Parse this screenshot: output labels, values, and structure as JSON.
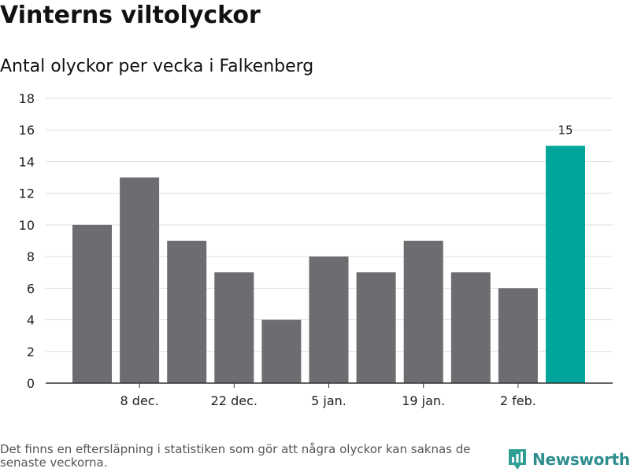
{
  "title": "Vinterns viltolyckor",
  "subtitle": "Antal olyckor per vecka i Falkenberg",
  "footnote": "Det finns en eftersläpning i statistiken som gör att några olyckor kan saknas de senaste veckorna.",
  "brand": {
    "name": "Newsworthy",
    "icon": "newsworthy-logo-icon",
    "color": "#2f9f96"
  },
  "colors": {
    "bar": "#6d6c71",
    "highlight": "#00a69b",
    "grid": "#dddddd",
    "axis": "#333333"
  },
  "chart_data": {
    "type": "bar",
    "title": "Vinterns viltolyckor",
    "subtitle": "Antal olyckor per vecka i Falkenberg",
    "values": [
      10,
      13,
      9,
      7,
      4,
      8,
      7,
      9,
      7,
      6,
      15
    ],
    "highlight_index": 10,
    "data_labels": [
      {
        "index": 10,
        "text": "15"
      }
    ],
    "x_tick_labels": [
      {
        "index": 1,
        "text": "8 dec."
      },
      {
        "index": 3,
        "text": "22 dec."
      },
      {
        "index": 5,
        "text": "5 jan."
      },
      {
        "index": 7,
        "text": "19 jan."
      },
      {
        "index": 9,
        "text": "2 feb."
      }
    ],
    "ylim": [
      0,
      18
    ],
    "yticks": [
      0,
      2,
      4,
      6,
      8,
      10,
      12,
      14,
      16,
      18
    ],
    "grid": true,
    "xlabel": "",
    "ylabel": ""
  }
}
